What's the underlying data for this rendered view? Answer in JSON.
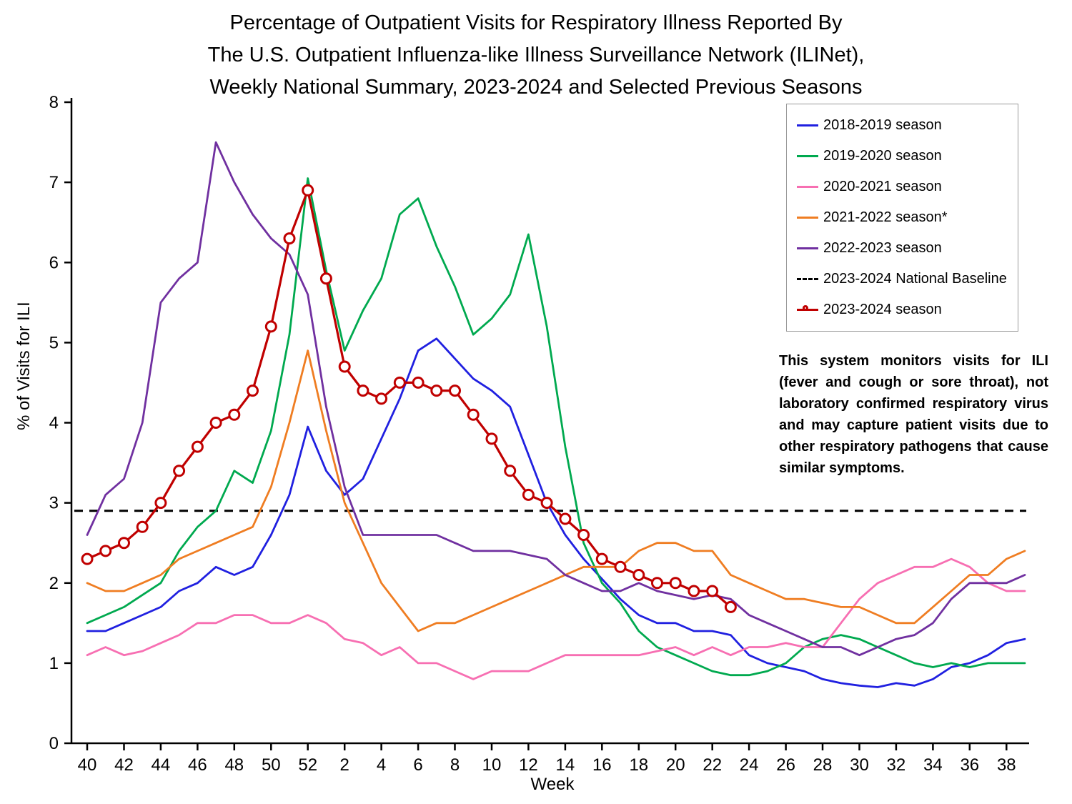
{
  "title": {
    "line1": "Percentage of Outpatient Visits for Respiratory Illness Reported By",
    "line2": "The U.S. Outpatient Influenza-like Illness Surveillance Network (ILINet),",
    "line3": "Weekly National Summary, 2023-2024 and Selected Previous Seasons"
  },
  "note": "This system monitors visits for ILI (fever and cough or sore throat), not laboratory confirmed respiratory virus and may capture patient visits due to other respiratory pathogens that cause similar symptoms.",
  "legend": {
    "items": [
      {
        "label": "2018-2019 season",
        "color": "#2020E0",
        "style": "solid"
      },
      {
        "label": "2019-2020 season",
        "color": "#00A94F",
        "style": "solid"
      },
      {
        "label": "2020-2021 season",
        "color": "#F76FB2",
        "style": "solid"
      },
      {
        "label": "2021-2022 season*",
        "color": "#EF7D22",
        "style": "solid"
      },
      {
        "label": "2022-2023 season",
        "color": "#7030A0",
        "style": "solid"
      },
      {
        "label": "2023-2024 National Baseline",
        "color": "#000000",
        "style": "dashed"
      },
      {
        "label": "2023-2024 season",
        "color": "#C00000",
        "style": "marker"
      }
    ]
  },
  "chart_data": {
    "type": "line",
    "title": "Percentage of Outpatient Visits for Respiratory Illness Reported By The U.S. Outpatient Influenza-like Illness Surveillance Network (ILINet), Weekly National Summary, 2023-2024 and Selected Previous Seasons",
    "xlabel": "Week",
    "ylabel": "% of Visits for ILI",
    "ylim": [
      0,
      8
    ],
    "yticks": [
      0,
      1,
      2,
      3,
      4,
      5,
      6,
      7,
      8
    ],
    "grid": false,
    "legend_position": "top-right",
    "x_weeks": [
      40,
      41,
      42,
      43,
      44,
      45,
      46,
      47,
      48,
      49,
      50,
      51,
      52,
      1,
      2,
      3,
      4,
      5,
      6,
      7,
      8,
      9,
      10,
      11,
      12,
      13,
      14,
      15,
      16,
      17,
      18,
      19,
      20,
      21,
      22,
      23,
      24,
      25,
      26,
      27,
      28,
      29,
      30,
      31,
      32,
      33,
      34,
      35,
      36,
      37,
      38,
      39
    ],
    "baseline": {
      "label": "2023-2024 National Baseline",
      "value": 2.9,
      "color": "#000000",
      "dash": true
    },
    "series": [
      {
        "name": "2018-2019 season",
        "color": "#2020E0",
        "values": [
          1.4,
          1.4,
          1.5,
          1.6,
          1.7,
          1.9,
          2.0,
          2.2,
          2.1,
          2.2,
          2.6,
          3.1,
          3.95,
          3.4,
          3.1,
          3.3,
          3.8,
          4.3,
          4.9,
          5.05,
          4.8,
          4.55,
          4.4,
          4.2,
          3.6,
          3.0,
          2.6,
          2.3,
          2.05,
          1.8,
          1.6,
          1.5,
          1.5,
          1.4,
          1.4,
          1.35,
          1.1,
          1.0,
          0.95,
          0.9,
          0.8,
          0.75,
          0.72,
          0.7,
          0.75,
          0.72,
          0.8,
          0.95,
          1.0,
          1.1,
          1.25,
          1.3
        ]
      },
      {
        "name": "2019-2020 season",
        "color": "#00A94F",
        "values": [
          1.5,
          1.6,
          1.7,
          1.85,
          2.0,
          2.4,
          2.7,
          2.9,
          3.4,
          3.25,
          3.9,
          5.1,
          7.05,
          5.9,
          4.9,
          5.4,
          5.8,
          6.6,
          6.8,
          6.2,
          5.7,
          5.1,
          5.3,
          5.6,
          6.35,
          5.2,
          3.7,
          2.5,
          2.0,
          1.75,
          1.4,
          1.2,
          1.1,
          1.0,
          0.9,
          0.85,
          0.85,
          0.9,
          1.0,
          1.2,
          1.3,
          1.35,
          1.3,
          1.2,
          1.1,
          1.0,
          0.95,
          1.0,
          0.95,
          1.0,
          1.0,
          1.0
        ]
      },
      {
        "name": "2020-2021 season",
        "color": "#F76FB2",
        "values": [
          1.1,
          1.2,
          1.1,
          1.15,
          1.25,
          1.35,
          1.5,
          1.5,
          1.6,
          1.6,
          1.5,
          1.5,
          1.6,
          1.5,
          1.3,
          1.25,
          1.1,
          1.2,
          1.0,
          1.0,
          0.9,
          0.8,
          0.9,
          0.9,
          0.9,
          1.0,
          1.1,
          1.1,
          1.1,
          1.1,
          1.1,
          1.15,
          1.2,
          1.1,
          1.2,
          1.1,
          1.2,
          1.2,
          1.25,
          1.2,
          1.2,
          1.5,
          1.8,
          2.0,
          2.1,
          2.2,
          2.2,
          2.3,
          2.2,
          2.0,
          1.9,
          1.9
        ]
      },
      {
        "name": "2021-2022 season*",
        "color": "#EF7D22",
        "values": [
          2.0,
          1.9,
          1.9,
          2.0,
          2.1,
          2.3,
          2.4,
          2.5,
          2.6,
          2.7,
          3.2,
          4.0,
          4.9,
          3.9,
          3.0,
          2.5,
          2.0,
          1.7,
          1.4,
          1.5,
          1.5,
          1.6,
          1.7,
          1.8,
          1.9,
          2.0,
          2.1,
          2.2,
          2.2,
          2.2,
          2.4,
          2.5,
          2.5,
          2.4,
          2.4,
          2.1,
          2.0,
          1.9,
          1.8,
          1.8,
          1.75,
          1.7,
          1.7,
          1.6,
          1.5,
          1.5,
          1.7,
          1.9,
          2.1,
          2.1,
          2.3,
          2.4
        ]
      },
      {
        "name": "2022-2023 season",
        "color": "#7030A0",
        "values": [
          2.6,
          3.1,
          3.3,
          4.0,
          5.5,
          5.8,
          6.0,
          7.5,
          7.0,
          6.6,
          6.3,
          6.1,
          5.6,
          4.2,
          3.2,
          2.6,
          2.6,
          2.6,
          2.6,
          2.6,
          2.5,
          2.4,
          2.4,
          2.4,
          2.35,
          2.3,
          2.1,
          2.0,
          1.9,
          1.9,
          2.0,
          1.9,
          1.85,
          1.8,
          1.85,
          1.8,
          1.6,
          1.5,
          1.4,
          1.3,
          1.2,
          1.2,
          1.1,
          1.2,
          1.3,
          1.35,
          1.5,
          1.8,
          2.0,
          2.0,
          2.0,
          2.1
        ]
      },
      {
        "name": "2023-2024 season",
        "color": "#C00000",
        "marker": "circle",
        "values": [
          2.3,
          2.4,
          2.5,
          2.7,
          3.0,
          3.4,
          3.7,
          4.0,
          4.1,
          4.4,
          5.2,
          6.3,
          6.9,
          5.8,
          4.7,
          4.4,
          4.3,
          4.5,
          4.5,
          4.4,
          4.4,
          4.1,
          3.8,
          3.4,
          3.1,
          3.0,
          2.8,
          2.6,
          2.3,
          2.2,
          2.1,
          2.0,
          2.0,
          1.9,
          1.9,
          1.7
        ]
      }
    ]
  }
}
